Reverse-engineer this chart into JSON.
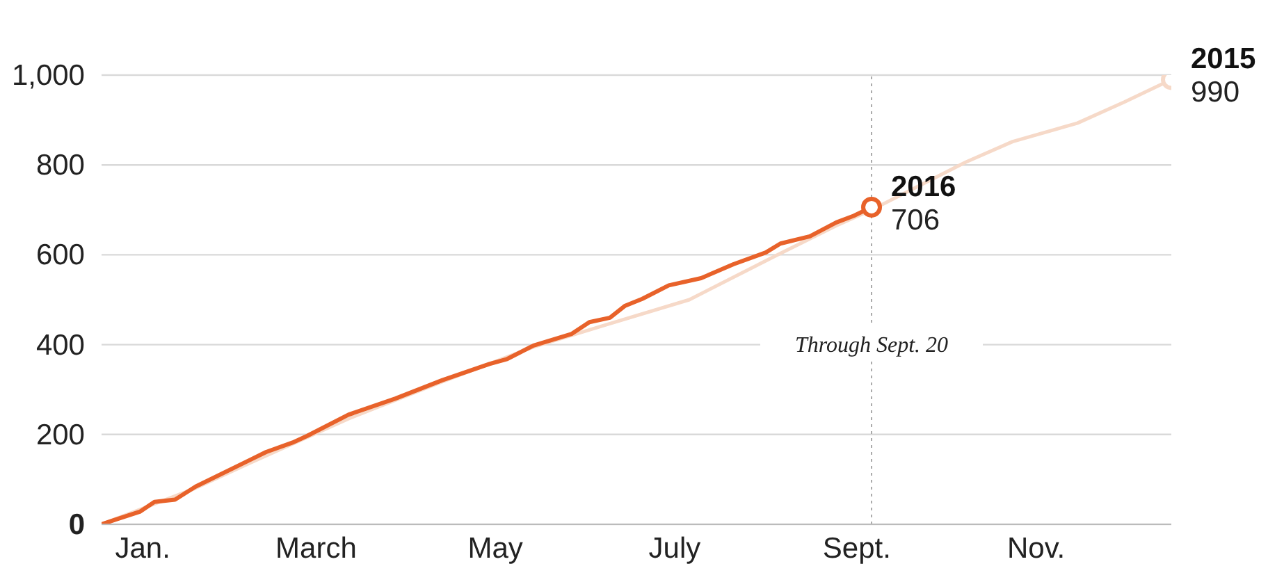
{
  "chart_data": {
    "type": "line",
    "xlim": [
      "--01-01",
      "--12-31"
    ],
    "xticks": [
      {
        "value": "--01-15",
        "label": "Jan."
      },
      {
        "value": "--03-15",
        "label": "March"
      },
      {
        "value": "--05-15",
        "label": "May"
      },
      {
        "value": "--07-15",
        "label": "July"
      },
      {
        "value": "--09-15",
        "label": "Sept."
      },
      {
        "value": "--11-15",
        "label": "Nov."
      }
    ],
    "ylim": [
      0,
      1000
    ],
    "yticks": [
      0,
      200,
      400,
      600,
      800,
      {
        "value": 1000,
        "label": "1,000"
      }
    ],
    "grid": "y",
    "line_style": "solid",
    "series": [
      {
        "name": "2015",
        "color": "#f6d9c8",
        "x": [
          "--01-01",
          "--02-01",
          "--02-20",
          "--03-26",
          "--04-26",
          "--05-28",
          "--06-22",
          "--07-20",
          "--08-19",
          "--09-08",
          "--09-20",
          "--10-22",
          "--11-07",
          "--11-29",
          "--12-15",
          "--12-31"
        ],
        "values": [
          0,
          78,
          135,
          235,
          315,
          395,
          445,
          500,
          600,
          665,
          700,
          806,
          852,
          893,
          940,
          990
        ],
        "value_labels": [
          null,
          null,
          null,
          null,
          null,
          null,
          null,
          null,
          null,
          null,
          null,
          null,
          null,
          null,
          null,
          "990"
        ]
      },
      {
        "name": "2016",
        "color": "#e8622a",
        "x": [
          "--01-01",
          "--01-06",
          "--01-14",
          "--01-19",
          "--01-26",
          "--02-02",
          "--02-21",
          "--02-26",
          "--03-07",
          "--03-12",
          "--03-26",
          "--04-11",
          "--04-27",
          "--05-13",
          "--05-19",
          "--05-28",
          "--06-10",
          "--06-16",
          "--06-23",
          "--06-28",
          "--07-04",
          "--07-13",
          "--07-24",
          "--08-04",
          "--08-15",
          "--08-20",
          "--08-30",
          "--09-08",
          "--09-14",
          "--09-20"
        ],
        "values": [
          0,
          11,
          28,
          50,
          55,
          84,
          145,
          161,
          182,
          197,
          244,
          280,
          321,
          357,
          368,
          398,
          424,
          450,
          460,
          486,
          502,
          532,
          548,
          579,
          605,
          625,
          641,
          672,
          687,
          706
        ],
        "value_labels": [
          null,
          null,
          null,
          null,
          null,
          null,
          null,
          null,
          null,
          null,
          null,
          null,
          null,
          null,
          null,
          null,
          null,
          null,
          null,
          null,
          null,
          null,
          null,
          null,
          null,
          null,
          null,
          null,
          null,
          "706"
        ]
      }
    ],
    "ref_lines": [
      {
        "axis": "x",
        "value": "--09-20",
        "label": "Through Sept. 20",
        "line_style": "dotted",
        "color": "#aaaaaa"
      }
    ]
  }
}
